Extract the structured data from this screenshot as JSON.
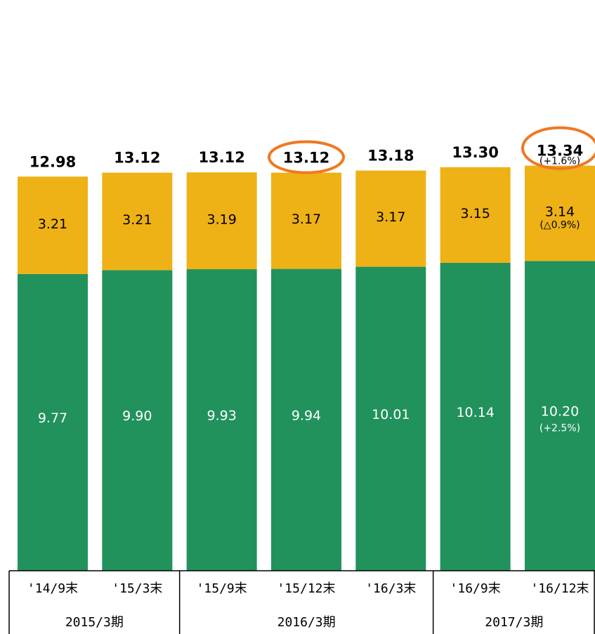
{
  "chart_data": {
    "type": "bar",
    "stacked": true,
    "categories": [
      "'14/9末",
      "'15/3末",
      "'15/9末",
      "'15/12末",
      "'16/3末",
      "'16/9末",
      "'16/12末"
    ],
    "periods": [
      {
        "label": "2015/3期",
        "categories": 2
      },
      {
        "label": "2016/3期",
        "categories": 3
      },
      {
        "label": "2017/3期",
        "categories": 2
      }
    ],
    "series": [
      {
        "values": [
          9.77,
          9.9,
          9.93,
          9.94,
          10.01,
          10.14,
          10.2
        ],
        "color": "#21925c",
        "label_color": "#ffffff",
        "value_labels": [
          "9.77",
          "9.90",
          "9.93",
          "9.94",
          "10.01",
          "10.14",
          "10.20"
        ],
        "change_note": "(+2.5%)"
      },
      {
        "values": [
          3.21,
          3.21,
          3.19,
          3.17,
          3.17,
          3.15,
          3.14
        ],
        "color": "#eeb116",
        "label_color": "#000000",
        "value_labels": [
          "3.21",
          "3.21",
          "3.19",
          "3.17",
          "3.17",
          "3.15",
          "3.14"
        ],
        "change_note": "(△0.9%)"
      }
    ],
    "totals": [
      12.98,
      13.12,
      13.12,
      13.12,
      13.18,
      13.3,
      13.34
    ],
    "total_labels": [
      "12.98",
      "13.12",
      "13.12",
      "13.12",
      "13.18",
      "13.30",
      "13.34"
    ],
    "total_change_note": "(+1.6%)",
    "highlighted_totals": [
      "'15/12末",
      "'16/12末"
    ],
    "highlight_color": "#f07820",
    "ylim": [
      0,
      13.34
    ]
  }
}
